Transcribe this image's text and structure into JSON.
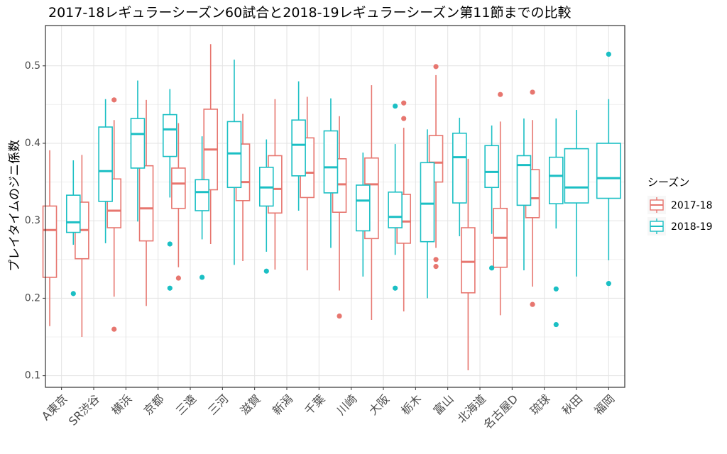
{
  "chart_data": {
    "type": "boxplot",
    "title": "2017-18レギュラーシーズン60試合と2018-19レギュラーシーズン第11節までの比較",
    "xlabel": "",
    "ylabel": "プレイタイムのジニ係数",
    "ylim": [
      0.085,
      0.552
    ],
    "yticks": [
      0.1,
      0.2,
      0.3,
      0.4,
      0.5
    ],
    "grid": true,
    "legend": {
      "title": "シーズン",
      "position": "right"
    },
    "categories": [
      "A東京",
      "SR渋谷",
      "横浜",
      "京都",
      "三遠",
      "三河",
      "滋賀",
      "新潟",
      "千葉",
      "川崎",
      "大阪",
      "栃木",
      "富山",
      "北海道",
      "名古屋D",
      "琉球",
      "秋田",
      "福岡"
    ],
    "series": [
      {
        "name": "2017-18",
        "color": "#e7766f",
        "boxes": [
          {
            "category": "A東京",
            "min": 0.164,
            "q1": 0.227,
            "median": 0.288,
            "q3": 0.319,
            "max": 0.391,
            "outliers": []
          },
          {
            "category": "SR渋谷",
            "min": 0.15,
            "q1": 0.251,
            "median": 0.288,
            "q3": 0.324,
            "max": 0.385,
            "outliers": []
          },
          {
            "category": "横浜",
            "min": 0.202,
            "q1": 0.291,
            "median": 0.313,
            "q3": 0.354,
            "max": 0.43,
            "outliers": [
              0.456,
              0.16
            ]
          },
          {
            "category": "京都",
            "min": 0.19,
            "q1": 0.274,
            "median": 0.316,
            "q3": 0.371,
            "max": 0.456,
            "outliers": []
          },
          {
            "category": "三遠",
            "min": 0.24,
            "q1": 0.316,
            "median": 0.348,
            "q3": 0.368,
            "max": 0.426,
            "outliers": [
              0.226
            ]
          },
          {
            "category": "三河",
            "min": 0.27,
            "q1": 0.34,
            "median": 0.392,
            "q3": 0.444,
            "max": 0.528,
            "outliers": []
          },
          {
            "category": "滋賀",
            "min": 0.248,
            "q1": 0.326,
            "median": 0.35,
            "q3": 0.399,
            "max": 0.438,
            "outliers": []
          },
          {
            "category": "新潟",
            "min": 0.237,
            "q1": 0.31,
            "median": 0.341,
            "q3": 0.384,
            "max": 0.457,
            "outliers": []
          },
          {
            "category": "千葉",
            "min": 0.236,
            "q1": 0.33,
            "median": 0.362,
            "q3": 0.407,
            "max": 0.46,
            "outliers": []
          },
          {
            "category": "川崎",
            "min": 0.21,
            "q1": 0.311,
            "median": 0.347,
            "q3": 0.38,
            "max": 0.435,
            "outliers": [
              0.177
            ]
          },
          {
            "category": "大阪",
            "min": 0.172,
            "q1": 0.277,
            "median": 0.347,
            "q3": 0.381,
            "max": 0.475,
            "outliers": []
          },
          {
            "category": "栃木",
            "min": 0.183,
            "q1": 0.271,
            "median": 0.299,
            "q3": 0.334,
            "max": 0.42,
            "outliers": [
              0.452,
              0.432
            ]
          },
          {
            "category": "富山",
            "min": 0.265,
            "q1": 0.35,
            "median": 0.375,
            "q3": 0.41,
            "max": 0.488,
            "outliers": [
              0.499,
              0.25,
              0.241
            ]
          },
          {
            "category": "北海道",
            "min": 0.107,
            "q1": 0.207,
            "median": 0.247,
            "q3": 0.291,
            "max": 0.38,
            "outliers": []
          },
          {
            "category": "名古屋D",
            "min": 0.178,
            "q1": 0.24,
            "median": 0.278,
            "q3": 0.316,
            "max": 0.428,
            "outliers": [
              0.463
            ]
          },
          {
            "category": "琉球",
            "min": 0.215,
            "q1": 0.304,
            "median": 0.329,
            "q3": 0.366,
            "max": 0.43,
            "outliers": [
              0.466,
              0.192
            ]
          }
        ]
      },
      {
        "name": "2018-19",
        "color": "#1bbfc4",
        "boxes": [
          {
            "category": "A東京",
            "min": 0.269,
            "q1": 0.285,
            "median": 0.298,
            "q3": 0.333,
            "max": 0.378,
            "outliers": [
              0.206
            ]
          },
          {
            "category": "SR渋谷",
            "min": 0.271,
            "q1": 0.325,
            "median": 0.364,
            "q3": 0.421,
            "max": 0.457,
            "outliers": []
          },
          {
            "category": "横浜",
            "min": 0.299,
            "q1": 0.368,
            "median": 0.412,
            "q3": 0.432,
            "max": 0.481,
            "outliers": []
          },
          {
            "category": "京都",
            "min": 0.33,
            "q1": 0.383,
            "median": 0.418,
            "q3": 0.437,
            "max": 0.47,
            "outliers": [
              0.27,
              0.213
            ]
          },
          {
            "category": "三遠",
            "min": 0.276,
            "q1": 0.313,
            "median": 0.337,
            "q3": 0.353,
            "max": 0.409,
            "outliers": [
              0.227
            ]
          },
          {
            "category": "三河",
            "min": 0.243,
            "q1": 0.343,
            "median": 0.387,
            "q3": 0.428,
            "max": 0.508,
            "outliers": []
          },
          {
            "category": "滋賀",
            "min": 0.26,
            "q1": 0.319,
            "median": 0.343,
            "q3": 0.369,
            "max": 0.405,
            "outliers": [
              0.235
            ]
          },
          {
            "category": "新潟",
            "min": 0.313,
            "q1": 0.358,
            "median": 0.398,
            "q3": 0.43,
            "max": 0.48,
            "outliers": []
          },
          {
            "category": "千葉",
            "min": 0.265,
            "q1": 0.336,
            "median": 0.369,
            "q3": 0.416,
            "max": 0.458,
            "outliers": []
          },
          {
            "category": "川崎",
            "min": 0.228,
            "q1": 0.287,
            "median": 0.326,
            "q3": 0.346,
            "max": 0.388,
            "outliers": []
          },
          {
            "category": "大阪",
            "min": 0.256,
            "q1": 0.291,
            "median": 0.305,
            "q3": 0.337,
            "max": 0.399,
            "outliers": [
              0.448,
              0.213
            ]
          },
          {
            "category": "栃木",
            "min": 0.2,
            "q1": 0.273,
            "median": 0.322,
            "q3": 0.375,
            "max": 0.418,
            "outliers": []
          },
          {
            "category": "富山",
            "min": 0.28,
            "q1": 0.323,
            "median": 0.382,
            "q3": 0.413,
            "max": 0.433,
            "outliers": []
          },
          {
            "category": "北海道",
            "min": 0.283,
            "q1": 0.343,
            "median": 0.363,
            "q3": 0.397,
            "max": 0.423,
            "outliers": [
              0.239
            ]
          },
          {
            "category": "名古屋D",
            "min": 0.236,
            "q1": 0.32,
            "median": 0.372,
            "q3": 0.384,
            "max": 0.432,
            "outliers": []
          },
          {
            "category": "琉球",
            "min": 0.29,
            "q1": 0.322,
            "median": 0.358,
            "q3": 0.382,
            "max": 0.432,
            "outliers": [
              0.212,
              0.166
            ]
          },
          {
            "category": "秋田",
            "min": 0.228,
            "q1": 0.323,
            "median": 0.343,
            "q3": 0.393,
            "max": 0.443,
            "outliers": []
          },
          {
            "category": "福岡",
            "min": 0.249,
            "q1": 0.329,
            "median": 0.355,
            "q3": 0.4,
            "max": 0.457,
            "outliers": [
              0.515,
              0.219
            ]
          }
        ]
      }
    ]
  }
}
